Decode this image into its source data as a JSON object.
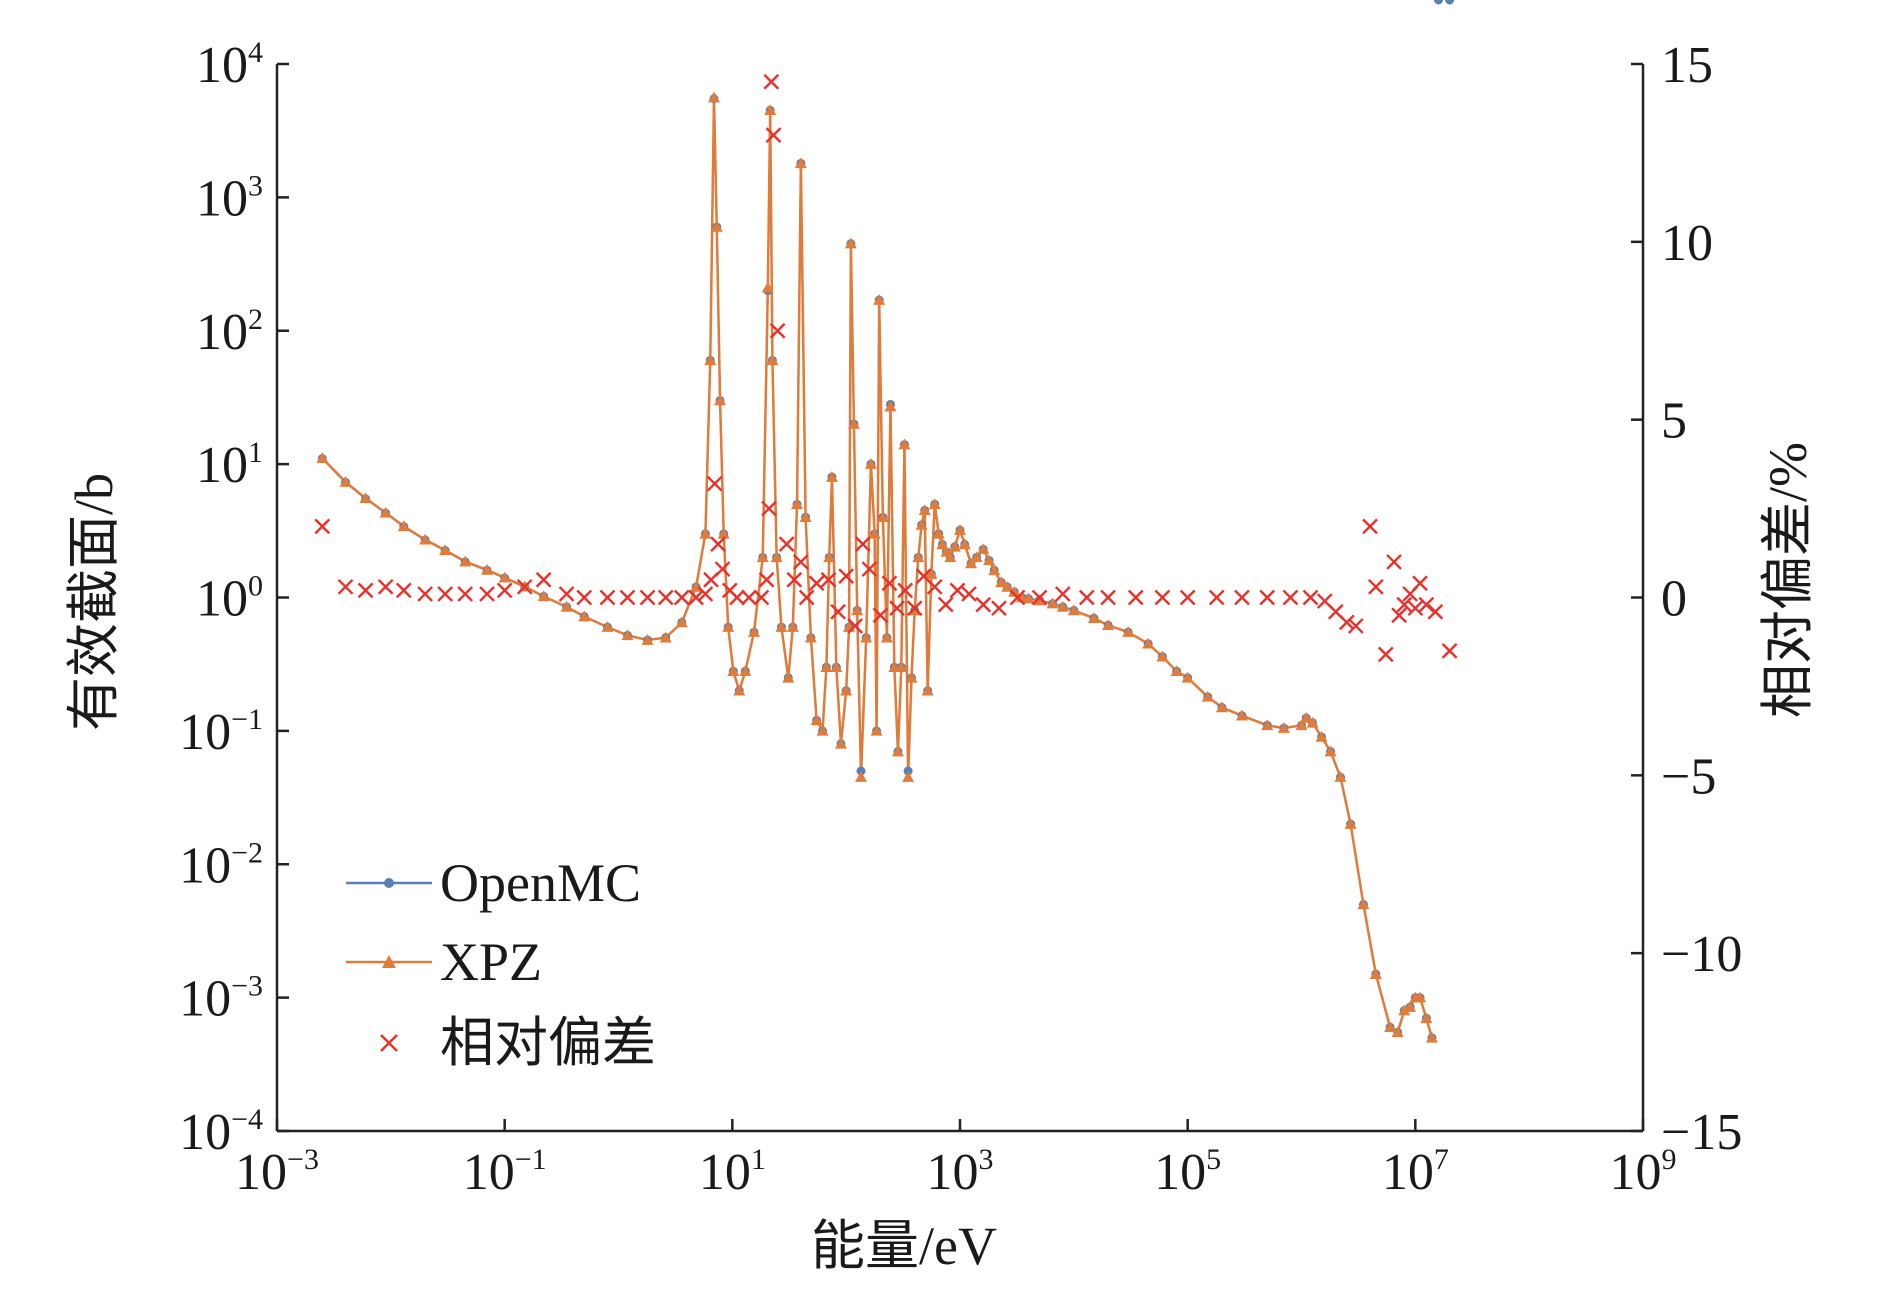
{
  "chart_data": {
    "type": "line",
    "xlabel": "能量/eV",
    "ylabel": "有效截面/b",
    "y2label": "相对偏差/%",
    "x_scale": "log",
    "y_scale": "log",
    "xlim": [
      0.001,
      1000000000
    ],
    "ylim": [
      0.0001,
      10000
    ],
    "y2lim": [
      -15,
      15
    ],
    "x_ticks": [
      {
        "base": "10",
        "exp": "-3",
        "value": 0.001
      },
      {
        "base": "10",
        "exp": "-1",
        "value": 0.1
      },
      {
        "base": "10",
        "exp": "1",
        "value": 10
      },
      {
        "base": "10",
        "exp": "3",
        "value": 1000
      },
      {
        "base": "10",
        "exp": "5",
        "value": 100000
      },
      {
        "base": "10",
        "exp": "7",
        "value": 10000000
      },
      {
        "base": "10",
        "exp": "9",
        "value": 1000000000
      }
    ],
    "y_ticks": [
      {
        "base": "10",
        "exp": "-4",
        "value": 0.0001
      },
      {
        "base": "10",
        "exp": "-3",
        "value": 0.001
      },
      {
        "base": "10",
        "exp": "-2",
        "value": 0.01
      },
      {
        "base": "10",
        "exp": "-1",
        "value": 0.1
      },
      {
        "base": "10",
        "exp": "0",
        "value": 1
      },
      {
        "base": "10",
        "exp": "1",
        "value": 10
      },
      {
        "base": "10",
        "exp": "2",
        "value": 100
      },
      {
        "base": "10",
        "exp": "3",
        "value": 1000
      },
      {
        "base": "10",
        "exp": "4",
        "value": 10000
      }
    ],
    "y2_ticks": [
      {
        "label": "15",
        "value": 15
      },
      {
        "label": "10",
        "value": 10
      },
      {
        "label": "5",
        "value": 5
      },
      {
        "label": "0",
        "value": 0
      },
      {
        "label": "−5",
        "value": -5
      },
      {
        "label": "−10",
        "value": -10
      },
      {
        "label": "−15",
        "value": -15
      }
    ],
    "legend_position": "bottom-left",
    "series": [
      {
        "name": "OpenMC",
        "axis": "left",
        "style": "line-circle",
        "color": "#5b7fb5"
      },
      {
        "name": "XPZ",
        "axis": "left",
        "style": "line-triangle",
        "color": "#e07b39"
      },
      {
        "name": "相对偏差",
        "axis": "right",
        "style": "cross",
        "color": "#e8312a"
      }
    ],
    "cross_section_x": [
      0.0025,
      0.004,
      0.006,
      0.009,
      0.013,
      0.02,
      0.03,
      0.045,
      0.07,
      0.1,
      0.15,
      0.22,
      0.35,
      0.5,
      0.8,
      1.2,
      1.8,
      2.6,
      3.6,
      4.8,
      5.8,
      6.4,
      6.9,
      7.3,
      7.8,
      8.4,
      9.2,
      10.2,
      11.5,
      13.0,
      15.5,
      18.5,
      20.5,
      21.5,
      22.5,
      24.5,
      27.0,
      31.0,
      34.0,
      37.0,
      40.0,
      44.0,
      49.0,
      55.0,
      62.0,
      67.0,
      71.0,
      75.0,
      82.0,
      90.0,
      100.0,
      106.0,
      110.0,
      117.0,
      125.0,
      135.0,
      150.0,
      165.0,
      178.0,
      185.0,
      195.0,
      210.0,
      228.0,
      245.0,
      265.0,
      285.0,
      305.0,
      325.0,
      350.0,
      375.0,
      400.0,
      430.0,
      460.0,
      490.0,
      520.0,
      560.0,
      600.0,
      650.0,
      700.0,
      760.0,
      820.0,
      900.0,
      1000.0,
      1100.0,
      1250.0,
      1400.0,
      1600.0,
      1800.0,
      2000.0,
      2300.0,
      2600.0,
      3000.0,
      3500.0,
      4000.0,
      5000.0,
      6500.0,
      8000.0,
      10000.0,
      15000.0,
      20000.0,
      30000.0,
      45000.0,
      60000.0,
      80000.0,
      100000.0,
      150000.0,
      200000.0,
      300000.0,
      500000.0,
      700000.0,
      1000000.0,
      1100000.0,
      1250000.0,
      1500000.0,
      1800000.0,
      2200000.0,
      2700000.0,
      3500000.0,
      4500000.0,
      6000000.0,
      7000000.0,
      8000000.0,
      9000000.0,
      10000000.0,
      11000000.0,
      12500000.0,
      14000000.0,
      16000000.0,
      20000000.0
    ],
    "openmc_values": [
      11.0,
      7.3,
      5.5,
      4.3,
      3.4,
      2.7,
      2.25,
      1.85,
      1.6,
      1.4,
      1.2,
      1.02,
      0.85,
      0.72,
      0.6,
      0.52,
      0.48,
      0.5,
      0.65,
      1.2,
      3.0,
      60.0,
      5500.0,
      600.0,
      30.0,
      3.0,
      0.6,
      0.28,
      0.2,
      0.28,
      0.55,
      2.0,
      200.0,
      4500.0,
      60.0,
      2.0,
      0.6,
      0.25,
      0.6,
      5.0,
      1800.0,
      4.0,
      0.5,
      0.12,
      0.1,
      0.3,
      2.0,
      8.0,
      0.3,
      0.08,
      0.2,
      0.6,
      450.0,
      20.0,
      0.8,
      0.05,
      0.5,
      10.0,
      3.0,
      0.1,
      170.0,
      4.0,
      0.5,
      28.0,
      0.3,
      0.07,
      0.3,
      14.0,
      0.05,
      0.25,
      0.8,
      2.0,
      3.5,
      4.5,
      0.2,
      1.5,
      5.0,
      3.0,
      2.5,
      2.2,
      2.0,
      2.4,
      3.2,
      2.5,
      1.8,
      2.0,
      2.3,
      1.9,
      1.6,
      1.3,
      1.2,
      1.1,
      1.0,
      0.98,
      0.95,
      0.9,
      0.85,
      0.8,
      0.7,
      0.62,
      0.55,
      0.45,
      0.36,
      0.28,
      0.25,
      0.18,
      0.15,
      0.13,
      0.11,
      0.105,
      0.11,
      0.125,
      0.115,
      0.09,
      0.07,
      0.045,
      0.02,
      0.005,
      0.0015,
      0.0006,
      0.00055,
      0.0008,
      0.00085,
      0.001,
      0.001,
      0.0007,
      0.0005
    ],
    "xpz_values": [
      11.1,
      7.35,
      5.55,
      4.32,
      3.42,
      2.71,
      2.26,
      1.86,
      1.61,
      1.41,
      1.21,
      1.02,
      0.85,
      0.72,
      0.6,
      0.52,
      0.48,
      0.5,
      0.65,
      1.2,
      3.0,
      60.0,
      5600.0,
      600.0,
      30.0,
      3.0,
      0.6,
      0.28,
      0.2,
      0.28,
      0.55,
      2.0,
      210.0,
      4500.0,
      60.0,
      2.0,
      0.6,
      0.25,
      0.6,
      5.0,
      1800.0,
      4.0,
      0.5,
      0.12,
      0.1,
      0.3,
      2.0,
      8.0,
      0.3,
      0.08,
      0.2,
      0.6,
      450.0,
      20.0,
      0.8,
      0.045,
      0.5,
      10.0,
      3.0,
      0.1,
      170.0,
      4.0,
      0.5,
      27.0,
      0.3,
      0.07,
      0.3,
      14.0,
      0.045,
      0.25,
      0.8,
      2.0,
      3.5,
      4.5,
      0.2,
      1.5,
      5.0,
      3.0,
      2.5,
      2.2,
      2.0,
      2.4,
      3.2,
      2.5,
      1.8,
      2.0,
      2.3,
      1.9,
      1.6,
      1.3,
      1.2,
      1.1,
      1.0,
      0.98,
      0.95,
      0.9,
      0.85,
      0.8,
      0.7,
      0.62,
      0.55,
      0.45,
      0.36,
      0.28,
      0.25,
      0.18,
      0.15,
      0.13,
      0.11,
      0.105,
      0.11,
      0.125,
      0.115,
      0.09,
      0.07,
      0.045,
      0.02,
      0.005,
      0.0015,
      0.0006,
      0.00055,
      0.0008,
      0.00085,
      0.001,
      0.001,
      0.0007,
      0.0005
    ],
    "relative_deviation_x": [
      0.0025,
      0.004,
      0.006,
      0.009,
      0.013,
      0.02,
      0.03,
      0.045,
      0.07,
      0.1,
      0.15,
      0.22,
      0.35,
      0.5,
      0.8,
      1.2,
      1.8,
      2.6,
      3.6,
      4.8,
      5.8,
      6.5,
      7.0,
      7.5,
      8.2,
      9.5,
      11.0,
      14.0,
      18.0,
      20.0,
      21.0,
      22.0,
      23.0,
      25.0,
      30.0,
      35.0,
      40.0,
      45.0,
      55.0,
      70.0,
      85.0,
      100.0,
      120.0,
      140.0,
      160.0,
      200.0,
      240.0,
      280.0,
      330.0,
      400.0,
      480.0,
      600.0,
      750.0,
      950.0,
      1200.0,
      1600.0,
      2200.0,
      3200.0,
      5000.0,
      8000.0,
      13000.0,
      20000.0,
      35000.0,
      60000.0,
      100000.0,
      180000.0,
      300000.0,
      500000.0,
      800000.0,
      1200000.0,
      1600000.0,
      2000000.0,
      2500000.0,
      3000000.0,
      4000000.0,
      4500000.0,
      5500000.0,
      6500000.0,
      7200000.0,
      8000000.0,
      9000000.0,
      10000000.0,
      11000000.0,
      12500000.0,
      15000000.0,
      20000000.0
    ],
    "relative_deviation_values": [
      2.0,
      0.3,
      0.2,
      0.3,
      0.2,
      0.1,
      0.1,
      0.1,
      0.1,
      0.2,
      0.3,
      0.5,
      0.1,
      0.0,
      0.0,
      0.0,
      0.0,
      0.0,
      0.0,
      0.0,
      0.1,
      0.5,
      3.2,
      1.5,
      0.8,
      0.2,
      0.0,
      0.0,
      0.0,
      0.5,
      2.5,
      14.5,
      13.0,
      7.5,
      1.5,
      0.5,
      1.0,
      0.0,
      0.4,
      0.5,
      -0.4,
      0.6,
      -0.8,
      1.5,
      0.8,
      -0.5,
      0.4,
      -0.3,
      0.2,
      -0.3,
      0.6,
      0.3,
      -0.2,
      0.2,
      0.1,
      -0.2,
      -0.3,
      0.0,
      0.0,
      0.1,
      0.0,
      0.0,
      0.0,
      0.0,
      0.0,
      0.0,
      0.0,
      0.0,
      0.0,
      0.0,
      -0.1,
      -0.4,
      -0.7,
      -0.8,
      2.0,
      0.3,
      -1.6,
      1.0,
      -0.5,
      -0.2,
      0.1,
      -0.3,
      0.4,
      -0.2,
      -0.4,
      -1.5
    ]
  }
}
